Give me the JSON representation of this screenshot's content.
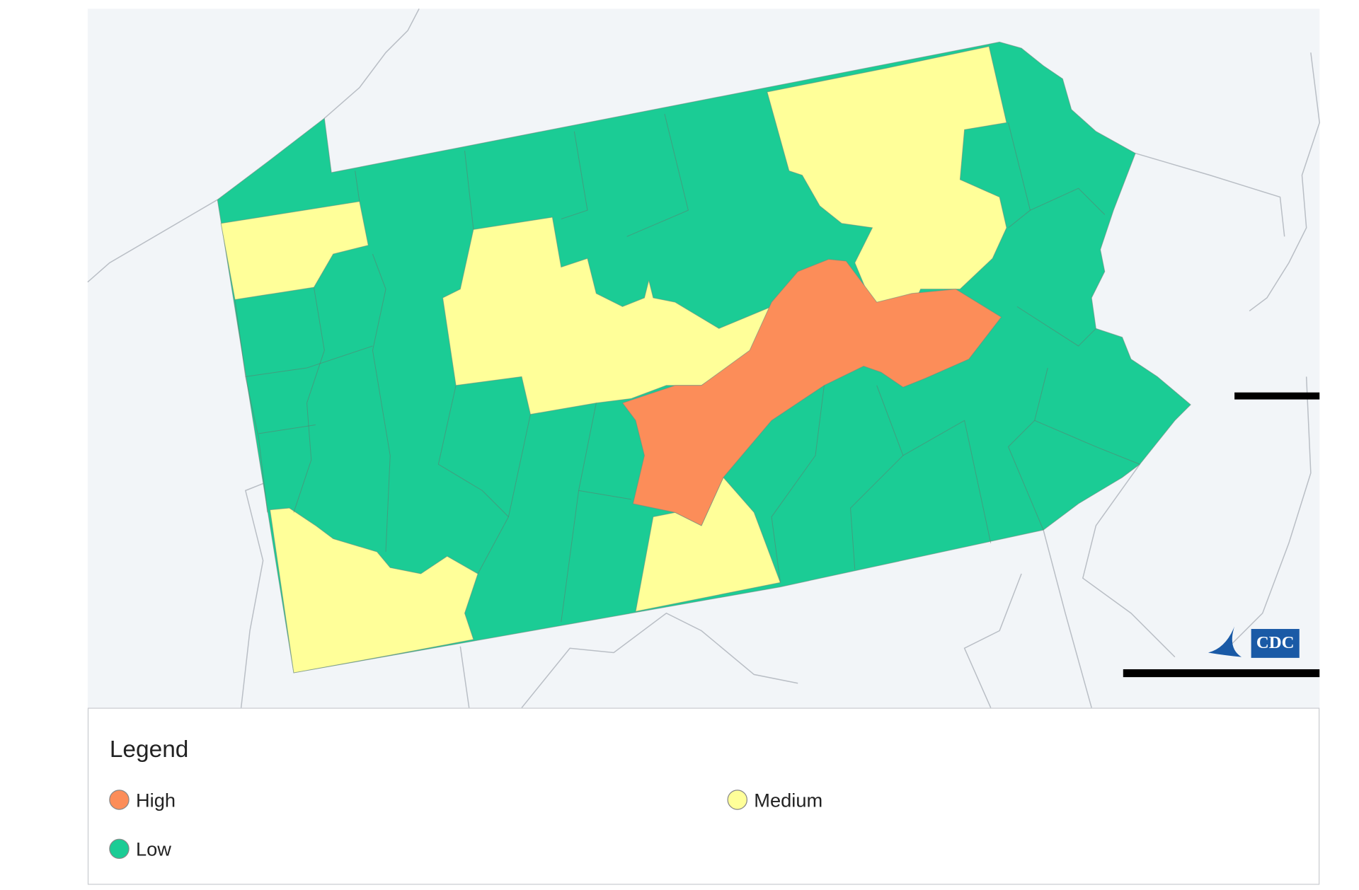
{
  "legend": {
    "title": "Legend",
    "items": [
      {
        "label": "High",
        "color": "#fc8d59"
      },
      {
        "label": "Medium",
        "color": "#ffff99"
      },
      {
        "label": "Low",
        "color": "#1bcc95"
      }
    ]
  },
  "logo": {
    "text": "CDC"
  }
}
